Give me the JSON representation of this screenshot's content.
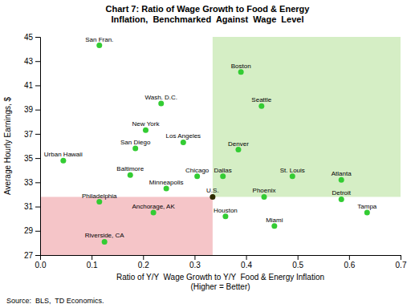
{
  "chart_data": {
    "type": "scatter",
    "title": [
      "Chart 7: Ratio of Wage Growth to Food & Energy",
      "Inflation,  Benchmarked  Against  Wage  Level"
    ],
    "xlabel": "Ratio of Y/Y  Wage Growth to Y/Y  Food & Energy Inflation\n(Higher = Better)",
    "ylabel": "Average Hourly Earnings, $",
    "source": "Source:  BLS,  TD Economics.",
    "xlim": [
      0,
      0.7
    ],
    "ylim": [
      27,
      45
    ],
    "xticks": [
      {
        "value": 0,
        "label": "0.0"
      },
      0.1,
      0.2,
      0.3,
      0.4,
      0.5,
      0.6,
      0.7
    ],
    "yticks": [
      27,
      29,
      31,
      33,
      35,
      37,
      39,
      41,
      43,
      45
    ],
    "grid": false,
    "labels": [
      "San Fran.",
      "Wash. D.C.",
      "New York",
      "Los Angeles",
      "Urban Hawaii",
      "San Diego",
      "Baltimore",
      "Chicago",
      "Minneapolis",
      "Dallas",
      "Boston",
      "Seattle",
      "Denver",
      "St. Louis",
      "Atlanta",
      "Phoenix",
      "Detroit",
      "Houston",
      "Miami",
      "Tampa",
      "Philadelphia",
      "Riverside, CA",
      "Anchorage, AK",
      "U.S."
    ],
    "x": [
      0.115,
      0.235,
      0.205,
      0.278,
      0.045,
      0.185,
      0.175,
      0.305,
      0.245,
      0.355,
      0.39,
      0.43,
      0.385,
      0.49,
      0.585,
      0.435,
      0.585,
      0.36,
      0.455,
      0.635,
      0.115,
      0.125,
      0.22,
      0.335
    ],
    "values": [
      44.3,
      39.5,
      37.3,
      36.3,
      34.8,
      35.8,
      33.6,
      33.5,
      32.5,
      33.5,
      42.1,
      39.3,
      35.7,
      33.5,
      33.2,
      31.8,
      31.6,
      30.2,
      29.4,
      30.5,
      31.4,
      28.1,
      30.5,
      31.8
    ],
    "colors": [
      "#33cc33",
      "#33cc33",
      "#33cc33",
      "#33cc33",
      "#33cc33",
      "#33cc33",
      "#33cc33",
      "#33cc33",
      "#33cc33",
      "#33cc33",
      "#33cc33",
      "#33cc33",
      "#33cc33",
      "#33cc33",
      "#33cc33",
      "#33cc33",
      "#33cc33",
      "#33cc33",
      "#33cc33",
      "#33cc33",
      "#33cc33",
      "#33cc33",
      "#33cc33",
      "#2d2d00"
    ],
    "regions": [
      {
        "x": [
          0.335,
          0.7
        ],
        "y": [
          31.8,
          45
        ],
        "color": "#d5eec5"
      },
      {
        "x": [
          0.0,
          0.335
        ],
        "y": [
          27,
          31.8
        ],
        "color": "#f5c5c8"
      }
    ]
  }
}
